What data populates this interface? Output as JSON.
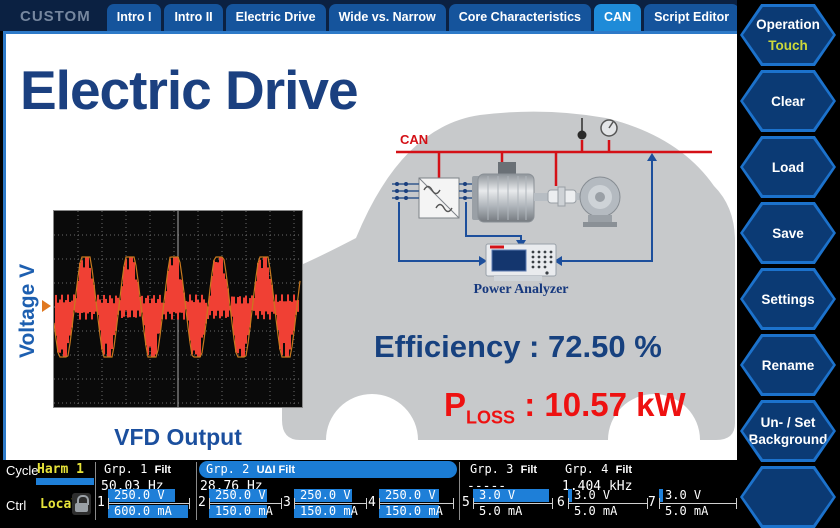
{
  "tab_bar": {
    "custom_label": "CUSTOM",
    "tabs": [
      {
        "label": "Intro I",
        "active": false
      },
      {
        "label": "Intro II",
        "active": false
      },
      {
        "label": "Electric Drive",
        "active": false
      },
      {
        "label": "Wide vs. Narrow",
        "active": false
      },
      {
        "label": "Core Characteristics",
        "active": false
      },
      {
        "label": "CAN",
        "active": true
      },
      {
        "label": "Script Editor",
        "active": false
      }
    ]
  },
  "sidebar": {
    "buttons": [
      {
        "label": "Operation",
        "sublabel": "Touch"
      },
      {
        "label": "Clear",
        "sublabel": ""
      },
      {
        "label": "Load",
        "sublabel": ""
      },
      {
        "label": "Save",
        "sublabel": ""
      },
      {
        "label": "Settings",
        "sublabel": ""
      },
      {
        "label": "Rename",
        "sublabel": ""
      },
      {
        "label": "Un- / Set",
        "sublabel": "Background"
      },
      {
        "label": "",
        "sublabel": ""
      }
    ]
  },
  "main": {
    "title": "Electric Drive",
    "scope": {
      "ylabel": "Voltage V",
      "caption": "VFD Output"
    },
    "diagram": {
      "bus_label": "CAN",
      "analyzer_label": "Power Analyzer"
    },
    "metrics": {
      "efficiency_label": "Efficiency :",
      "efficiency_value": "72.50 %",
      "ploss_base": "P",
      "ploss_sub": "LOSS",
      "ploss_sep": ":",
      "ploss_value": "10.57 kW"
    }
  },
  "status_bar": {
    "cycle_label": "Cycle",
    "cycle_value": "Harm 1",
    "ctrl_label": "Ctrl",
    "ctrl_value": "Local",
    "lock_icon": "padlock",
    "groups": [
      {
        "name": "Grp. 1",
        "mode": "Filt",
        "freq": "50.03  Hz",
        "highlighted": false
      },
      {
        "name": "Grp. 2",
        "mode": "UΔI  Filt",
        "freq": "28.76  Hz",
        "highlighted": true
      },
      {
        "name": "Grp. 3",
        "mode": "Filt",
        "freq": "-----",
        "highlighted": false
      },
      {
        "name": "Grp. 4",
        "mode": "Filt",
        "freq": "1.404  kHz",
        "highlighted": false
      }
    ],
    "channels": [
      {
        "num": "1",
        "v": "250.0 V",
        "a": "600.0 mA",
        "v_fill": 0.82,
        "a_fill": 0.97
      },
      {
        "num": "2",
        "v": "250.0 V",
        "a": "150.0 mA",
        "v_fill": 0.8,
        "a_fill": 0.8
      },
      {
        "num": "3",
        "v": "250.0 V",
        "a": "150.0 mA",
        "v_fill": 0.8,
        "a_fill": 0.8
      },
      {
        "num": "4",
        "v": "250.0 V",
        "a": "150.0 mA",
        "v_fill": 0.8,
        "a_fill": 0.8
      },
      {
        "num": "5",
        "v": "3.0 V",
        "a": "5.0 mA",
        "v_fill": 0.95,
        "a_fill": 0.0
      },
      {
        "num": "6",
        "v": "3.0 V",
        "a": "5.0 mA",
        "v_fill": 0.05,
        "a_fill": 0.0
      },
      {
        "num": "7",
        "v": "3.0 V",
        "a": "5.0 mA",
        "v_fill": 0.05,
        "a_fill": 0.0
      }
    ]
  }
}
